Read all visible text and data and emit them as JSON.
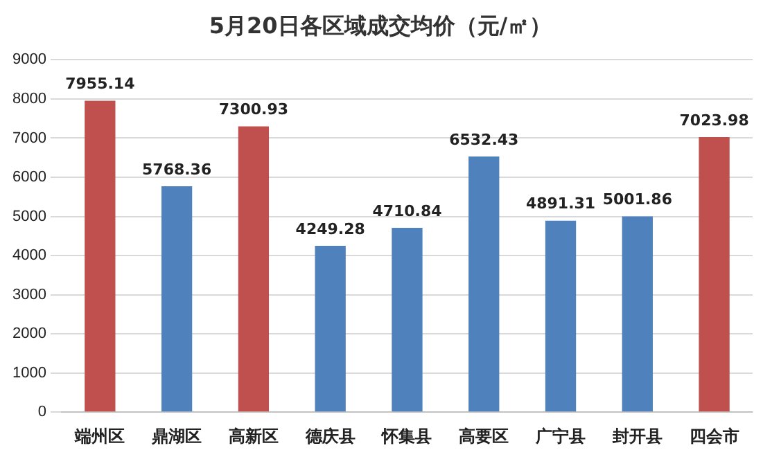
{
  "chart_data": {
    "type": "bar",
    "title": "5月20日各区域成交均价（元/㎡）",
    "categories": [
      "端州区",
      "鼎湖区",
      "高新区",
      "德庆县",
      "怀集县",
      "高要区",
      "广宁县",
      "封开县",
      "四会市"
    ],
    "values": [
      7955.14,
      5768.36,
      7300.93,
      4249.28,
      4710.84,
      6532.43,
      4891.31,
      5001.86,
      7023.98
    ],
    "colors": [
      "#c0504d",
      "#4f81bd",
      "#c0504d",
      "#4f81bd",
      "#4f81bd",
      "#4f81bd",
      "#4f81bd",
      "#4f81bd",
      "#c0504d"
    ],
    "ylim": [
      0,
      9000
    ],
    "yticks": [
      0,
      1000,
      2000,
      3000,
      4000,
      5000,
      6000,
      7000,
      8000,
      9000
    ],
    "grid": "y",
    "data_labels": true,
    "legend": false
  }
}
